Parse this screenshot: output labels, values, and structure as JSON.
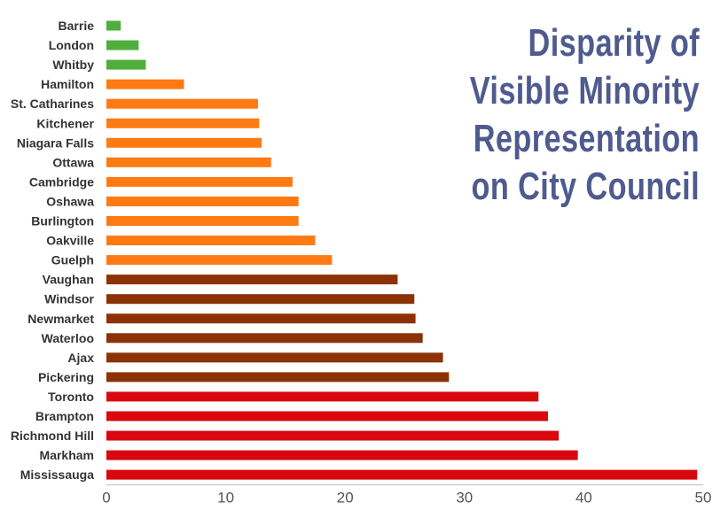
{
  "chart_data": {
    "type": "bar",
    "orientation": "horizontal",
    "title_lines": [
      "Disparity of",
      "Visible Minority",
      "Representation",
      "on City Council"
    ],
    "xlabel": "",
    "ylabel": "",
    "xlim": [
      0,
      50
    ],
    "xticks": [
      0,
      10,
      20,
      30,
      40,
      50
    ],
    "grid": false,
    "categories": [
      "Barrie",
      "London",
      "Whitby",
      "Hamilton",
      "St. Catharines",
      "Kitchener",
      "Niagara Falls",
      "Ottawa",
      "Cambridge",
      "Oshawa",
      "Burlington",
      "Oakville",
      "Guelph",
      "Vaughan",
      "Windsor",
      "Newmarket",
      "Waterloo",
      "Ajax",
      "Pickering",
      "Toronto",
      "Brampton",
      "Richmond Hill",
      "Markham",
      "Mississauga"
    ],
    "values": [
      1.2,
      2.7,
      3.3,
      6.5,
      12.7,
      12.8,
      13.0,
      13.8,
      15.6,
      16.1,
      16.1,
      17.5,
      18.9,
      24.4,
      25.8,
      25.9,
      26.5,
      28.2,
      28.7,
      36.2,
      37.0,
      37.9,
      39.5,
      49.5
    ],
    "colors": [
      "#4fae3c",
      "#4fae3c",
      "#4fae3c",
      "#ff7a12",
      "#ff7a12",
      "#ff7a12",
      "#ff7a12",
      "#ff7a12",
      "#ff7a12",
      "#ff7a12",
      "#ff7a12",
      "#ff7a12",
      "#ff7a12",
      "#8b3306",
      "#8b3306",
      "#8b3306",
      "#8b3306",
      "#8b3306",
      "#8b3306",
      "#d9080f",
      "#d9080f",
      "#d9080f",
      "#d9080f",
      "#d9080f"
    ]
  }
}
